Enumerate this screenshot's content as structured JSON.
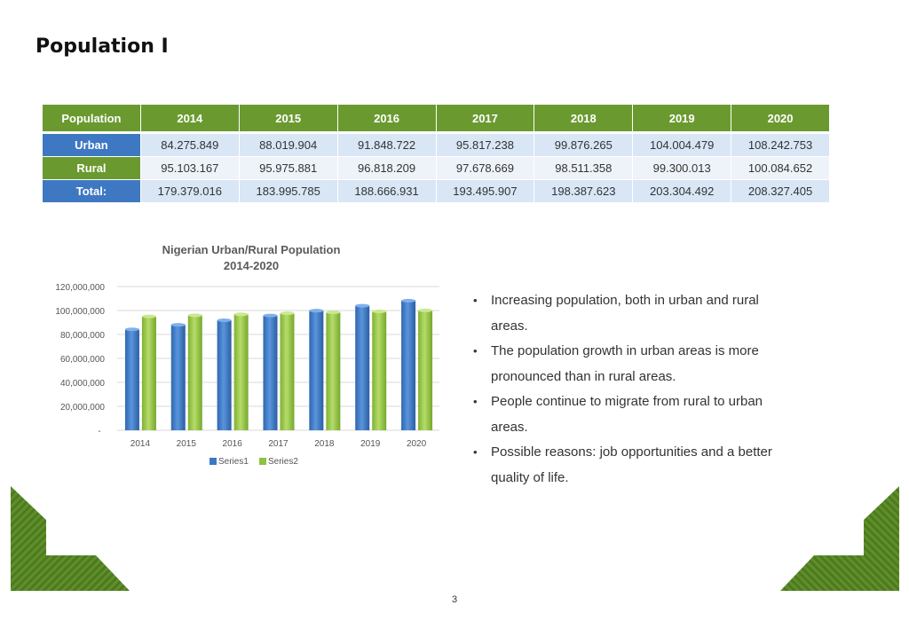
{
  "slide": {
    "title": "Population I",
    "page_number": "3"
  },
  "table": {
    "headers": [
      "Population",
      "2014",
      "2015",
      "2016",
      "2017",
      "2018",
      "2019",
      "2020"
    ],
    "rows": [
      {
        "label": "Urban",
        "values": [
          "84.275.849",
          "88.019.904",
          "91.848.722",
          "95.817.238",
          "99.876.265",
          "104.004.479",
          "108.242.753"
        ]
      },
      {
        "label": "Rural",
        "values": [
          "95.103.167",
          "95.975.881",
          "96.818.209",
          "97.678.669",
          "98.511.358",
          "99.300.013",
          "100.084.652"
        ]
      },
      {
        "label": "Total:",
        "values": [
          "179.379.016",
          "183.995.785",
          "188.666.931",
          "193.495.907",
          "198.387.623",
          "203.304.492",
          "208.327.405"
        ]
      }
    ]
  },
  "chart_data": {
    "type": "bar",
    "title": "Nigerian Urban/Rural Population",
    "subtitle": "2014-2020",
    "categories": [
      "2014",
      "2015",
      "2016",
      "2017",
      "2018",
      "2019",
      "2020"
    ],
    "series": [
      {
        "name": "Series1",
        "color": "#3a78c7",
        "values": [
          84275849,
          88019904,
          91848722,
          95817238,
          99876265,
          104004479,
          108242753
        ]
      },
      {
        "name": "Series2",
        "color": "#8fc23f",
        "values": [
          95103167,
          95975881,
          96818209,
          97678669,
          98511358,
          99300013,
          100084652
        ]
      }
    ],
    "ylim": [
      0,
      120000000
    ],
    "yticks": [
      "-",
      "20,000,000",
      "40,000,000",
      "60,000,000",
      "80,000,000",
      "100,000,000",
      "120,000,000"
    ],
    "ytick_values": [
      0,
      20000000,
      40000000,
      60000000,
      80000000,
      100000000,
      120000000
    ],
    "xlabel": "",
    "ylabel": "",
    "grid": true,
    "legend": "bottom"
  },
  "bullets": [
    {
      "line1": "Increasing population, both in urban and rural",
      "line2": "areas."
    },
    {
      "line1": "The population growth in urban areas is more",
      "line2": "pronounced than in rural areas."
    },
    {
      "line1": "People continue to migrate from rural to urban",
      "line2": "areas."
    },
    {
      "line1": "Possible reasons: job opportunities and a better",
      "line2": "quality of life."
    }
  ],
  "colors": {
    "green": "#6a9a2f",
    "blue": "#3f78c2",
    "corner_green": "#5f8f2a"
  }
}
